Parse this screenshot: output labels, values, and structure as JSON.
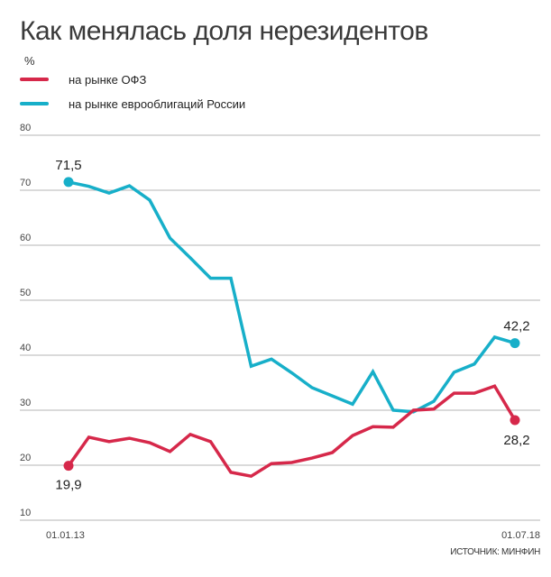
{
  "title": "Как менялась доля нерезидентов",
  "unit": "%",
  "source": "ИСТОЧНИК: МИНФИН",
  "colors": {
    "ofz": "#d6284a",
    "euro": "#17afc9",
    "grid": "#b5b5b5"
  },
  "legend": [
    {
      "label": "на рынке ОФЗ",
      "color": "#d6284a"
    },
    {
      "label": "на рынке еврооблигаций России",
      "color": "#17afc9"
    }
  ],
  "chart_data": {
    "type": "line",
    "title": "Как менялась доля нерезидентов",
    "xlabel": "",
    "ylabel": "%",
    "ylim": [
      10,
      80
    ],
    "yticks": [
      "80",
      "70",
      "60",
      "50",
      "40",
      "30",
      "20",
      "10"
    ],
    "ytick_values": [
      80,
      70,
      60,
      50,
      40,
      30,
      20,
      10
    ],
    "grid": true,
    "legend_position": "top-left",
    "x_tick_labels": [
      "01.01.13",
      "01.07.18"
    ],
    "x": [
      "01.01.13",
      "01.04.13",
      "01.07.13",
      "01.10.13",
      "01.01.14",
      "01.04.14",
      "01.07.14",
      "01.10.14",
      "01.01.15",
      "01.04.15",
      "01.07.15",
      "01.10.15",
      "01.01.16",
      "01.04.16",
      "01.07.16",
      "01.10.16",
      "01.01.17",
      "01.04.17",
      "01.07.17",
      "01.10.17",
      "01.01.18",
      "01.04.18",
      "01.07.18"
    ],
    "series": [
      {
        "name": "на рынке еврооблигаций России",
        "key": "euro",
        "values": [
          71.5,
          70.7,
          69.5,
          70.8,
          68.2,
          61.3,
          57.7,
          54.0,
          54.0,
          38.0,
          39.3,
          36.8,
          34.1,
          32.6,
          31.1,
          37.0,
          30.0,
          29.7,
          31.6,
          36.9,
          38.4,
          43.3,
          42.2
        ],
        "start_label": "71,5",
        "end_label": "42,2"
      },
      {
        "name": "на рынке ОФЗ",
        "key": "ofz",
        "values": [
          19.9,
          25.1,
          24.3,
          24.9,
          24.1,
          22.5,
          25.6,
          24.3,
          18.7,
          18.0,
          20.3,
          20.5,
          21.3,
          22.3,
          25.4,
          27.0,
          26.9,
          30.0,
          30.2,
          33.1,
          33.1,
          34.4,
          28.2
        ],
        "start_label": "19,9",
        "end_label": "28,2"
      }
    ]
  }
}
